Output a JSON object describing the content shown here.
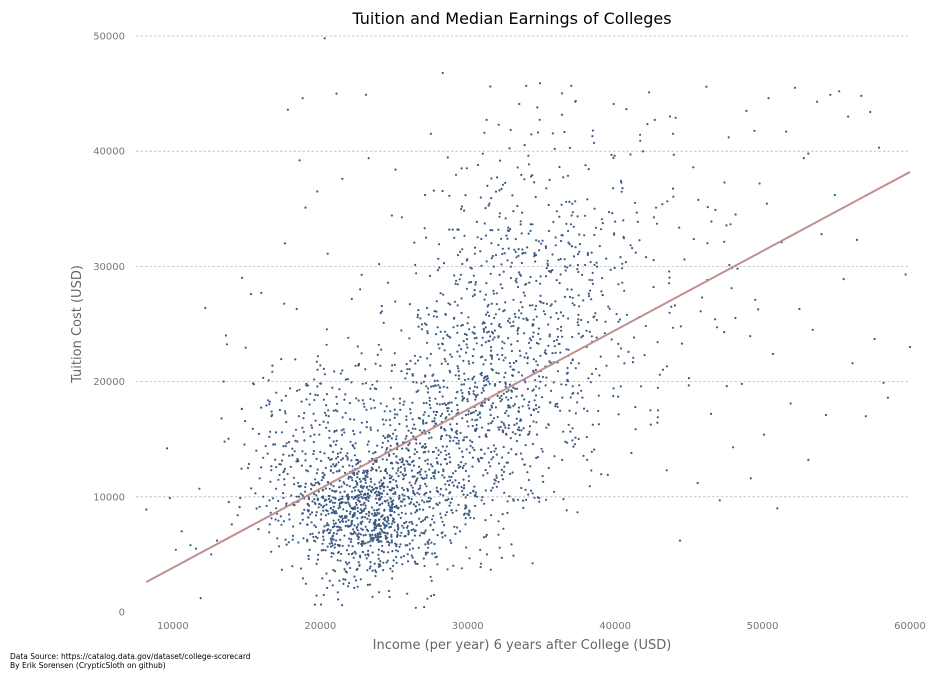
{
  "chart_data": {
    "type": "scatter",
    "title": "Tuition and Median Earnings of Colleges",
    "xlabel": "Income (per year) 6 years after College (USD)",
    "ylabel": "Tuition Cost (USD)",
    "xlim": [
      7500,
      60000
    ],
    "ylim": [
      0,
      50000
    ],
    "x_ticks": [
      "10000",
      "20000",
      "30000",
      "40000",
      "50000",
      "60000"
    ],
    "y_ticks": [
      "0",
      "10000",
      "20000",
      "30000",
      "40000",
      "50000"
    ],
    "grid": "horizontal dashed",
    "point_color": "#3d5a80",
    "trend_color": "#c09090",
    "trendline": {
      "x": [
        8200,
        60000
      ],
      "y": [
        2600,
        38200
      ]
    },
    "points": [
      [
        8200,
        8900
      ],
      [
        9600,
        14200
      ],
      [
        9800,
        9900
      ],
      [
        10200,
        5400
      ],
      [
        10600,
        7000
      ],
      [
        11200,
        5800
      ],
      [
        11800,
        10700
      ],
      [
        12200,
        26400
      ],
      [
        12600,
        5000
      ],
      [
        13000,
        6200
      ],
      [
        13300,
        16800
      ],
      [
        13600,
        24000
      ],
      [
        14000,
        7600
      ],
      [
        14400,
        8400
      ],
      [
        14700,
        29000
      ],
      [
        15100,
        12500
      ],
      [
        15300,
        27600
      ],
      [
        15600,
        10300
      ],
      [
        15800,
        7200
      ],
      [
        16000,
        27700
      ],
      [
        16300,
        14400
      ],
      [
        16500,
        20100
      ],
      [
        16700,
        17400
      ],
      [
        17000,
        9000
      ],
      [
        17200,
        5700
      ],
      [
        17400,
        15600
      ],
      [
        17600,
        32000
      ],
      [
        17800,
        43600
      ],
      [
        18000,
        12600
      ],
      [
        18200,
        9300
      ],
      [
        18400,
        26300
      ],
      [
        18600,
        39200
      ],
      [
        18800,
        44600
      ],
      [
        19000,
        35100
      ],
      [
        19200,
        8200
      ],
      [
        19400,
        16200
      ],
      [
        19600,
        18400
      ],
      [
        19800,
        36500
      ],
      [
        20000,
        13900
      ],
      [
        20200,
        10600
      ],
      [
        20300,
        49800
      ],
      [
        20500,
        31100
      ],
      [
        20700,
        7100
      ],
      [
        20900,
        14800
      ],
      [
        21100,
        45000
      ],
      [
        21300,
        12300
      ],
      [
        21500,
        37600
      ],
      [
        21700,
        9500
      ],
      [
        21900,
        23800
      ],
      [
        22100,
        6300
      ],
      [
        22300,
        16700
      ],
      [
        22500,
        11200
      ],
      [
        22700,
        28000
      ],
      [
        22900,
        5200
      ],
      [
        23100,
        44900
      ],
      [
        23300,
        8700
      ],
      [
        23500,
        13300
      ],
      [
        23700,
        19400
      ],
      [
        23900,
        6800
      ],
      [
        24100,
        10300
      ],
      [
        24300,
        25100
      ],
      [
        24500,
        4300
      ],
      [
        24700,
        15300
      ],
      [
        24900,
        9100
      ],
      [
        25100,
        38400
      ],
      [
        25300,
        7300
      ],
      [
        25500,
        20900
      ],
      [
        25700,
        12800
      ],
      [
        25900,
        5800
      ],
      [
        26100,
        17600
      ],
      [
        26300,
        10500
      ],
      [
        26500,
        29400
      ],
      [
        26700,
        8100
      ],
      [
        26900,
        14300
      ],
      [
        27100,
        36200
      ],
      [
        27300,
        6100
      ],
      [
        27500,
        22400
      ],
      [
        27700,
        11800
      ],
      [
        27900,
        4800
      ],
      [
        28100,
        19100
      ],
      [
        28300,
        46800
      ],
      [
        28500,
        9700
      ],
      [
        28700,
        26800
      ],
      [
        28900,
        15900
      ],
      [
        29100,
        7400
      ],
      [
        29300,
        33200
      ],
      [
        29500,
        12600
      ],
      [
        29700,
        21800
      ],
      [
        29900,
        5600
      ],
      [
        30100,
        28600
      ],
      [
        30300,
        17300
      ],
      [
        30500,
        9200
      ],
      [
        30700,
        38800
      ],
      [
        30900,
        14100
      ],
      [
        31100,
        24500
      ],
      [
        31300,
        6700
      ],
      [
        31500,
        19800
      ],
      [
        31700,
        30900
      ],
      [
        31900,
        11400
      ],
      [
        32100,
        42300
      ],
      [
        32300,
        16500
      ],
      [
        32500,
        26200
      ],
      [
        32700,
        8600
      ],
      [
        32900,
        21300
      ],
      [
        33100,
        34800
      ],
      [
        33300,
        13700
      ],
      [
        33500,
        44100
      ],
      [
        33700,
        18800
      ],
      [
        33900,
        28400
      ],
      [
        34100,
        10200
      ],
      [
        34300,
        23600
      ],
      [
        34500,
        37300
      ],
      [
        34700,
        15400
      ],
      [
        34900,
        45900
      ],
      [
        35100,
        20400
      ],
      [
        35300,
        31600
      ],
      [
        35500,
        12500
      ],
      [
        35700,
        26700
      ],
      [
        35900,
        40200
      ],
      [
        36100,
        17800
      ],
      [
        36300,
        29300
      ],
      [
        36500,
        9800
      ],
      [
        36700,
        22800
      ],
      [
        36900,
        35600
      ],
      [
        37100,
        14900
      ],
      [
        37300,
        44300
      ],
      [
        37500,
        25400
      ],
      [
        37700,
        19200
      ],
      [
        37900,
        32700
      ],
      [
        38100,
        13200
      ],
      [
        38300,
        27900
      ],
      [
        38500,
        41800
      ],
      [
        38700,
        21100
      ],
      [
        38900,
        16300
      ],
      [
        39100,
        34100
      ],
      [
        39300,
        24200
      ],
      [
        39500,
        11900
      ],
      [
        39700,
        29700
      ],
      [
        39900,
        44100
      ],
      [
        40200,
        18700
      ],
      [
        40500,
        36800
      ],
      [
        40800,
        25800
      ],
      [
        41100,
        13800
      ],
      [
        41400,
        31200
      ],
      [
        41700,
        40900
      ],
      [
        42000,
        22300
      ],
      [
        42300,
        45100
      ],
      [
        42600,
        28200
      ],
      [
        42900,
        16900
      ],
      [
        43200,
        35400
      ],
      [
        43500,
        12300
      ],
      [
        43800,
        26500
      ],
      [
        44100,
        42900
      ],
      [
        44400,
        6200
      ],
      [
        44700,
        30600
      ],
      [
        45000,
        20300
      ],
      [
        45300,
        38600
      ],
      [
        45600,
        11200
      ],
      [
        45900,
        27300
      ],
      [
        46200,
        45600
      ],
      [
        46500,
        17200
      ],
      [
        46800,
        34900
      ],
      [
        47100,
        9700
      ],
      [
        47400,
        24300
      ],
      [
        47700,
        41200
      ],
      [
        48000,
        14300
      ],
      [
        48300,
        29800
      ],
      [
        48600,
        19800
      ],
      [
        48900,
        43500
      ],
      [
        49200,
        11600
      ],
      [
        49500,
        27100
      ],
      [
        49800,
        37200
      ],
      [
        50100,
        15400
      ],
      [
        50400,
        44600
      ],
      [
        50700,
        22400
      ],
      [
        51000,
        9000
      ],
      [
        51300,
        32100
      ],
      [
        51600,
        41700
      ],
      [
        51900,
        18100
      ],
      [
        52200,
        45500
      ],
      [
        52500,
        26300
      ],
      [
        52800,
        39400
      ],
      [
        53100,
        13200
      ],
      [
        53400,
        24500
      ],
      [
        53700,
        44300
      ],
      [
        54000,
        32800
      ],
      [
        54300,
        17100
      ],
      [
        54600,
        44900
      ],
      [
        54900,
        36200
      ],
      [
        55200,
        45200
      ],
      [
        55500,
        28900
      ],
      [
        55800,
        43000
      ],
      [
        56100,
        21600
      ],
      [
        56400,
        32300
      ],
      [
        56700,
        44800
      ],
      [
        57000,
        17000
      ],
      [
        57300,
        43400
      ],
      [
        57600,
        23700
      ],
      [
        57900,
        40300
      ],
      [
        58200,
        19900
      ],
      [
        58500,
        18600
      ],
      [
        59700,
        29300
      ],
      [
        60000,
        23000
      ]
    ]
  },
  "footer": {
    "source": "Data Source: https://catalog.data.gov/dataset/college-scorecard",
    "author": "By Erik Sorensen (CrypticSloth on github)"
  }
}
